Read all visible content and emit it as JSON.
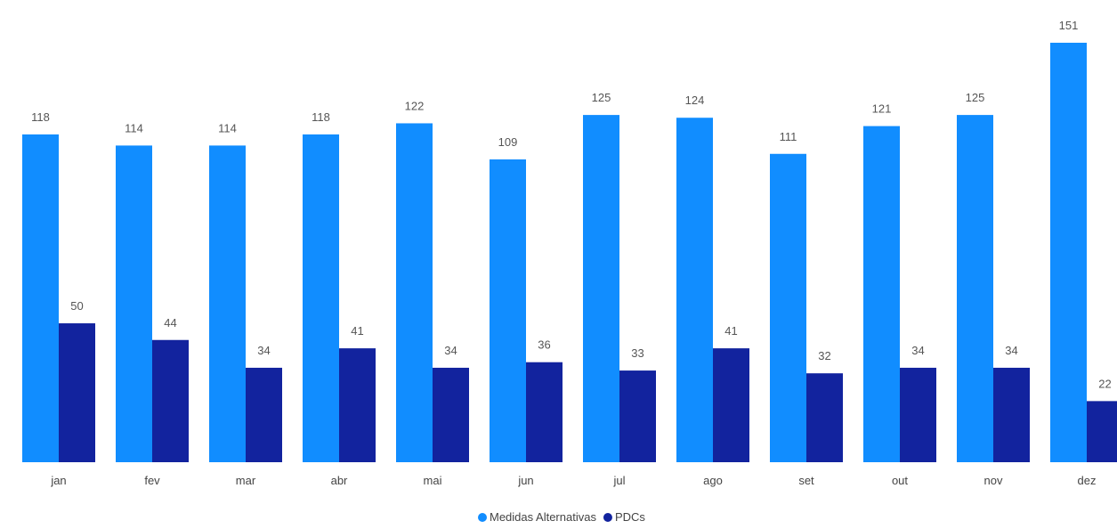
{
  "chart_data": {
    "type": "bar",
    "categories": [
      "jan",
      "fev",
      "mar",
      "abr",
      "mai",
      "jun",
      "jul",
      "ago",
      "set",
      "out",
      "nov",
      "dez"
    ],
    "series": [
      {
        "name": "Medidas Alternativas",
        "color": "#118DFF",
        "values": [
          118,
          114,
          114,
          118,
          122,
          109,
          125,
          124,
          111,
          121,
          125,
          151
        ],
        "labels": [
          "118",
          "114",
          "114",
          "118",
          "122",
          "109",
          "125",
          "124",
          "111",
          "121",
          "125",
          "151"
        ]
      },
      {
        "name": "PDCs",
        "color": "#12239E",
        "values": [
          50,
          44,
          34,
          41,
          34,
          36,
          33,
          41,
          32,
          34,
          34,
          22
        ],
        "labels": [
          "50",
          "44",
          "34",
          "41",
          "34",
          "36",
          "33",
          "41",
          "32",
          "34",
          "34",
          "22"
        ]
      }
    ],
    "ylim": [
      0,
      151
    ],
    "grid": false,
    "legend_position": "bottom-center",
    "data_labels": true
  }
}
